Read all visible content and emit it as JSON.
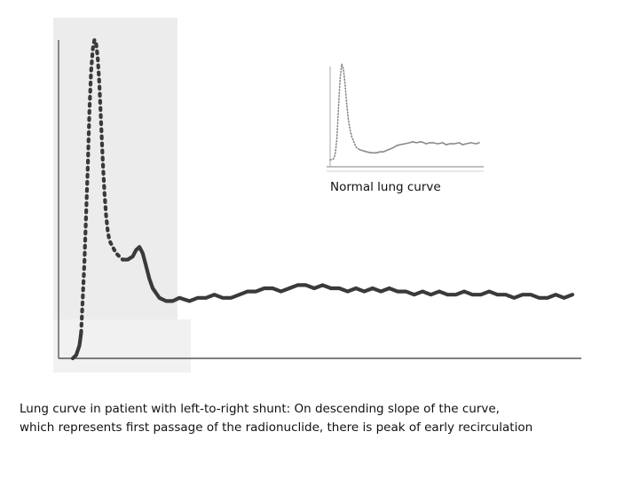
{
  "chart_data": [
    {
      "type": "line",
      "panel": "main",
      "title": "",
      "xlabel": "",
      "ylabel": "",
      "colors": {
        "curve": "#3a3a3a",
        "axis": "#555555",
        "scan_background": "#ebebeb"
      },
      "series": [
        {
          "segments": [
            {
              "style": "solid",
              "x": [
                0,
                2,
                4,
                5
              ],
              "y": [
                0,
                1,
                4,
                8
              ]
            },
            {
              "style": "dotted",
              "x": [
                5,
                7,
                9,
                10,
                11,
                12,
                13,
                14,
                15,
                16,
                17,
                18,
                19,
                20,
                21,
                22,
                24,
                26,
                28,
                30
              ],
              "y": [
                8,
                30,
                60,
                78,
                90,
                97,
                100,
                99,
                94,
                86,
                74,
                62,
                52,
                45,
                40,
                37,
                35,
                33,
                32,
                31
              ]
            },
            {
              "style": "solid",
              "x": [
                30,
                33,
                36,
                38,
                40,
                42,
                44,
                46,
                48,
                52,
                56,
                60,
                64,
                70,
                75,
                80,
                85,
                90,
                95,
                100
              ],
              "y": [
                31,
                31,
                32,
                34,
                35,
                33,
                29,
                25,
                22,
                19,
                18,
                18,
                19,
                18,
                19,
                19,
                20,
                19,
                19,
                20
              ]
            },
            {
              "style": "solid",
              "x": [
                100,
                105,
                110,
                115,
                120,
                125,
                130,
                135,
                140,
                145,
                150,
                155,
                160,
                165,
                170,
                175,
                180,
                185,
                190,
                195,
                200,
                205,
                210,
                215,
                220,
                225,
                230,
                235,
                240,
                245,
                250,
                255,
                260,
                265,
                270,
                275,
                280,
                285,
                290,
                295,
                300
              ],
              "y": [
                20,
                21,
                21,
                22,
                22,
                21,
                22,
                23,
                23,
                22,
                23,
                22,
                22,
                21,
                22,
                21,
                22,
                21,
                22,
                21,
                21,
                20,
                21,
                20,
                21,
                20,
                20,
                21,
                20,
                20,
                21,
                20,
                20,
                19,
                20,
                20,
                19,
                19,
                20,
                19,
                20
              ]
            }
          ]
        }
      ],
      "xlim": [
        0,
        300
      ],
      "ylim": [
        0,
        100
      ],
      "grid": false,
      "legend": "none"
    },
    {
      "type": "line",
      "panel": "inset",
      "title": "Normal lung curve",
      "xlabel": "",
      "ylabel": "",
      "colors": {
        "curve": "#8a8a8a",
        "axis": "#9a9a9a"
      },
      "series": [
        {
          "segments": [
            {
              "style": "dotted",
              "x": [
                0,
                2,
                3,
                4,
                5,
                6,
                7,
                8,
                9,
                10,
                11,
                12,
                13,
                14,
                15,
                16,
                17,
                18
              ],
              "y": [
                5,
                6,
                10,
                25,
                55,
                85,
                100,
                95,
                80,
                60,
                45,
                35,
                28,
                24,
                20,
                17,
                16,
                15
              ]
            },
            {
              "style": "solid",
              "x": [
                18,
                20,
                22,
                25,
                28,
                30,
                32,
                35,
                38,
                40,
                42,
                45,
                48,
                50,
                52,
                55,
                58,
                60,
                62,
                65,
                68,
                70,
                72,
                75,
                78,
                80,
                82,
                85,
                88,
                90
              ],
              "y": [
                15,
                14,
                13,
                12,
                12,
                13,
                13,
                15,
                17,
                19,
                20,
                21,
                22,
                23,
                22,
                23,
                21,
                22,
                22,
                21,
                22,
                20,
                21,
                21,
                22,
                20,
                21,
                22,
                21,
                22
              ]
            }
          ]
        }
      ],
      "xlim": [
        0,
        90
      ],
      "ylim": [
        0,
        100
      ],
      "grid": false,
      "legend": "none"
    }
  ],
  "caption_line1": "Lung curve in patient with left-to-right shunt: On descending slope of the curve,",
  "caption_line2": "which represents first passage of the radionuclide, there is peak of early recirculation"
}
